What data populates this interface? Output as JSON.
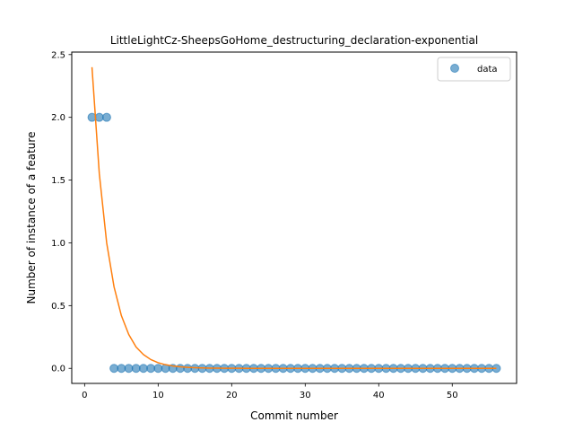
{
  "chart_data": {
    "type": "scatter",
    "title": "LittleLightCz-SheepsGoHome_destructuring_declaration-exponential",
    "xlabel": "Commit number",
    "ylabel": "Number of instance of a feature",
    "xlim": [
      -1.75,
      58.75
    ],
    "ylim": [
      -0.12,
      2.52
    ],
    "x_ticks": [
      0,
      10,
      20,
      30,
      40,
      50
    ],
    "y_ticks": [
      0.0,
      0.5,
      1.0,
      1.5,
      2.0,
      2.5
    ],
    "x_tick_labels": [
      "0",
      "10",
      "20",
      "30",
      "40",
      "50"
    ],
    "y_tick_labels": [
      "0.0",
      "0.5",
      "1.0",
      "1.5",
      "2.0",
      "2.5"
    ],
    "grid": false,
    "legend_position": "top-right",
    "series": [
      {
        "name": "data",
        "kind": "scatter",
        "color": "#1f77b4",
        "x": [
          1,
          2,
          3,
          4,
          5,
          6,
          7,
          8,
          9,
          10,
          11,
          12,
          13,
          14,
          15,
          16,
          17,
          18,
          19,
          20,
          21,
          22,
          23,
          24,
          25,
          26,
          27,
          28,
          29,
          30,
          31,
          32,
          33,
          34,
          35,
          36,
          37,
          38,
          39,
          40,
          41,
          42,
          43,
          44,
          45,
          46,
          47,
          48,
          49,
          50,
          51,
          52,
          53,
          54,
          55,
          56
        ],
        "y": [
          2,
          2,
          2,
          0,
          0,
          0,
          0,
          0,
          0,
          0,
          0,
          0,
          0,
          0,
          0,
          0,
          0,
          0,
          0,
          0,
          0,
          0,
          0,
          0,
          0,
          0,
          0,
          0,
          0,
          0,
          0,
          0,
          0,
          0,
          0,
          0,
          0,
          0,
          0,
          0,
          0,
          0,
          0,
          0,
          0,
          0,
          0,
          0,
          0,
          0,
          0,
          0,
          0,
          0,
          0,
          0
        ]
      },
      {
        "kind": "line",
        "color": "#ff7f0e",
        "x": [
          1,
          2,
          3,
          4,
          5,
          6,
          7,
          8,
          9,
          10,
          11,
          12,
          13,
          14,
          15,
          16,
          17,
          18,
          19,
          20,
          21,
          22,
          23,
          24,
          25,
          26,
          27,
          28,
          29,
          30,
          31,
          32,
          33,
          34,
          35,
          36,
          37,
          38,
          39,
          40,
          41,
          42,
          43,
          44,
          45,
          46,
          47,
          48,
          49,
          50,
          51,
          52,
          53,
          54,
          55,
          56
        ],
        "y": [
          2.4,
          1.55,
          1.0,
          0.65,
          0.42,
          0.27,
          0.17,
          0.11,
          0.07,
          0.045,
          0.029,
          0.019,
          0.012,
          0.008,
          0.005,
          0.003,
          0.002,
          0.0013,
          0.0009,
          0.0006,
          0.0004,
          0.0002,
          0.0001,
          0.0001,
          0,
          0,
          0,
          0,
          0,
          0,
          0,
          0,
          0,
          0,
          0,
          0,
          0,
          0,
          0,
          0,
          0,
          0,
          0,
          0,
          0,
          0,
          0,
          0,
          0,
          0,
          0,
          0,
          0,
          0,
          0,
          0
        ]
      }
    ]
  }
}
